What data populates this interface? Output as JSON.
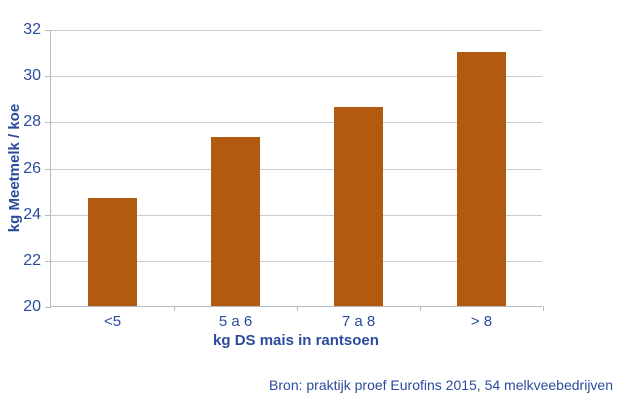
{
  "chart_data": {
    "type": "bar",
    "categories": [
      "<5",
      "5 a 6",
      "7 a 8",
      "> 8"
    ],
    "values": [
      24.7,
      27.3,
      28.6,
      31.0
    ],
    "title": "",
    "xlabel": "kg DS mais in rantsoen",
    "ylabel": "kg Meetmelk / koe",
    "ylim": [
      20,
      32
    ],
    "ytick_step": 2,
    "grid": true,
    "legend_position": "none",
    "bar_width_fraction": 0.4
  },
  "source_note": "Bron: praktijk proef Eurofins 2015, 54 melkveebedrijven",
  "colors": {
    "bar_orange": "#B25B10",
    "text_blue": "#2C4B9D",
    "gridline_gray": "#C9CCD3",
    "axis_gray": "#B5B9C2",
    "background": "#FFFFFF"
  }
}
